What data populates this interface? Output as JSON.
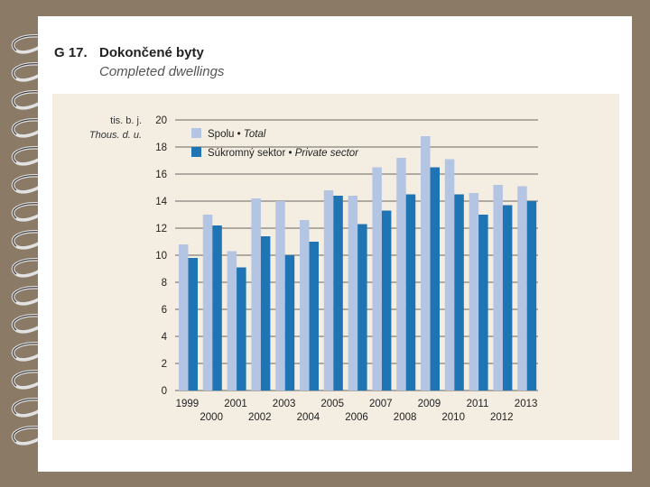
{
  "title": {
    "code": "G 17.",
    "cz": "Dokončené byty",
    "en": "Completed dwellings"
  },
  "colors": {
    "total": "#b4c5e4",
    "private": "#1f74b4",
    "panel": "#f4ede1",
    "background": "#8a7a66"
  },
  "chart_data": {
    "type": "bar",
    "title": "Dokončené byty / Completed dwellings",
    "ylabel_cz": "tis. b. j.",
    "ylabel_en": "Thous. d. u.",
    "ylim": [
      0,
      20
    ],
    "yticks": [
      0,
      2,
      4,
      6,
      8,
      10,
      12,
      14,
      16,
      18,
      20
    ],
    "grid": true,
    "legend_position": "top-left",
    "categories": [
      "1999",
      "2000",
      "2001",
      "2002",
      "2003",
      "2004",
      "2005",
      "2006",
      "2007",
      "2008",
      "2009",
      "2010",
      "2011",
      "2012",
      "2013"
    ],
    "series": [
      {
        "name_cz": "Spolu",
        "name_en": "Total",
        "color": "#b4c5e4",
        "values": [
          10.8,
          13.0,
          10.3,
          14.2,
          14.0,
          12.6,
          14.8,
          14.4,
          16.5,
          17.2,
          18.8,
          17.1,
          14.6,
          15.2,
          15.1
        ]
      },
      {
        "name_cz": "Súkromný sektor",
        "name_en": "Private sector",
        "color": "#1f74b4",
        "values": [
          9.8,
          12.2,
          9.1,
          11.4,
          10.0,
          11.0,
          14.4,
          12.3,
          13.3,
          14.5,
          16.5,
          14.5,
          13.0,
          13.7,
          14.0
        ]
      }
    ]
  }
}
